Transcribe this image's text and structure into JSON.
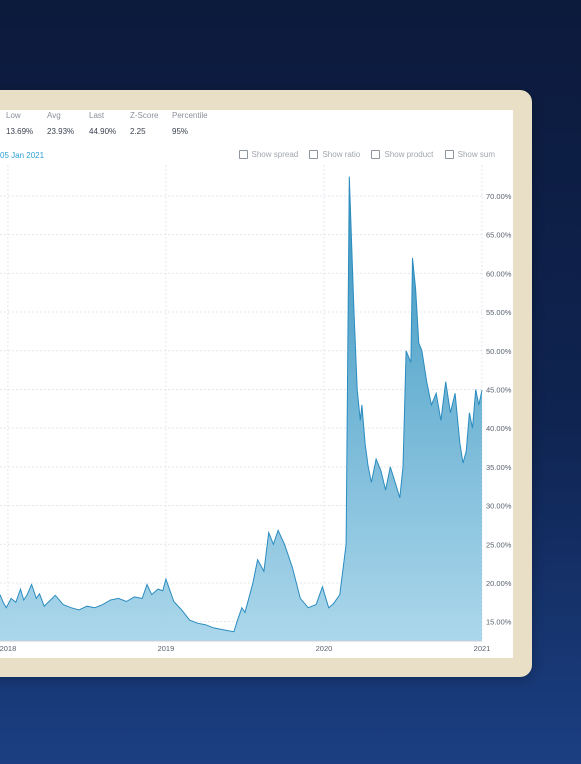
{
  "stats": [
    {
      "label": "Low",
      "value": "13.69%"
    },
    {
      "label": "Avg",
      "value": "23.93%"
    },
    {
      "label": "Last",
      "value": "44.90%"
    },
    {
      "label": "Z-Score",
      "value": "2.25"
    },
    {
      "label": "Percentile",
      "value": "95%"
    }
  ],
  "date_label": "05 Jan 2021",
  "toggles": [
    {
      "label": "Show spread"
    },
    {
      "label": "Show ratio"
    },
    {
      "label": "Show product"
    },
    {
      "label": "Show sum"
    }
  ],
  "colors": {
    "line": "#2b8cbf",
    "fill_top": "#2f8fbd",
    "fill_bottom": "#a7d5ea",
    "accent": "#2a9fd6"
  },
  "chart_data": {
    "type": "area",
    "xlim": [
      2017.95,
      2021.0
    ],
    "ylim": [
      12.5,
      74.0
    ],
    "y_ticks": [
      15,
      20,
      25,
      30,
      35,
      40,
      45,
      50,
      55,
      60,
      65,
      70
    ],
    "y_tick_labels": [
      "15.00%",
      "20.00%",
      "25.00%",
      "30.00%",
      "35.00%",
      "40.00%",
      "45.00%",
      "50.00%",
      "55.00%",
      "60.00%",
      "65.00%",
      "70.00%"
    ],
    "x_ticks": [
      2018,
      2019,
      2020,
      2021
    ],
    "x_tick_labels": [
      "2018",
      "2019",
      "2020",
      "2021"
    ],
    "grid": true,
    "series": [
      {
        "x": [
          2017.95,
          2017.97,
          2017.99,
          2018.02,
          2018.05,
          2018.08,
          2018.1,
          2018.12,
          2018.15,
          2018.18,
          2018.2,
          2018.23,
          2018.26,
          2018.3,
          2018.35,
          2018.4,
          2018.45,
          2018.5,
          2018.55,
          2018.6,
          2018.65,
          2018.7,
          2018.75,
          2018.8,
          2018.85,
          2018.88,
          2018.91,
          2018.95,
          2018.98,
          2019.0,
          2019.05,
          2019.1,
          2019.15,
          2019.2,
          2019.25,
          2019.3,
          2019.35,
          2019.4,
          2019.43,
          2019.45,
          2019.48,
          2019.5,
          2019.55,
          2019.58,
          2019.62,
          2019.65,
          2019.68,
          2019.71,
          2019.75,
          2019.8,
          2019.85,
          2019.9,
          2019.95,
          2019.99,
          2020.03,
          2020.06,
          2020.1,
          2020.14,
          2020.16,
          2020.19,
          2020.21,
          2020.23,
          2020.24,
          2020.26,
          2020.28,
          2020.3,
          2020.33,
          2020.36,
          2020.39,
          2020.42,
          2020.45,
          2020.48,
          2020.5,
          2020.52,
          2020.55,
          2020.56,
          2020.58,
          2020.6,
          2020.62,
          2020.65,
          2020.68,
          2020.71,
          2020.74,
          2020.77,
          2020.8,
          2020.83,
          2020.86,
          2020.88,
          2020.9,
          2020.92,
          2020.94,
          2020.96,
          2020.98,
          2021.0
        ],
        "y": [
          18.5,
          17.5,
          16.8,
          18.0,
          17.5,
          19.2,
          17.8,
          18.4,
          19.8,
          18.0,
          18.6,
          17.0,
          17.6,
          18.4,
          17.2,
          16.8,
          16.5,
          17.0,
          16.8,
          17.2,
          17.8,
          18.0,
          17.6,
          18.2,
          18.0,
          19.8,
          18.5,
          19.2,
          19.0,
          20.5,
          17.6,
          16.5,
          15.2,
          14.8,
          14.6,
          14.2,
          14.0,
          13.8,
          13.7,
          15.0,
          16.8,
          16.2,
          20.0,
          23.0,
          21.5,
          26.5,
          25.0,
          26.8,
          25.0,
          22.0,
          18.0,
          16.8,
          17.2,
          19.5,
          16.8,
          17.3,
          18.5,
          25.0,
          72.5,
          55.0,
          45.0,
          41.0,
          43.0,
          38.0,
          35.0,
          33.0,
          36.0,
          34.5,
          32.0,
          35.0,
          33.0,
          31.0,
          35.0,
          50.0,
          48.5,
          62.0,
          58.0,
          51.0,
          50.0,
          46.0,
          43.0,
          44.5,
          41.0,
          46.0,
          42.0,
          44.5,
          38.0,
          35.5,
          37.0,
          42.0,
          40.0,
          45.0,
          43.0,
          44.9
        ]
      }
    ]
  }
}
